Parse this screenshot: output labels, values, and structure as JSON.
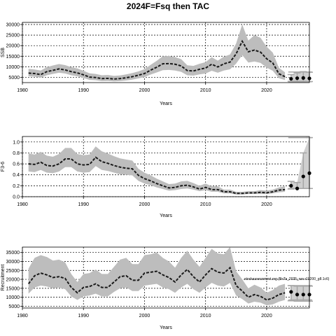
{
  "title": "2024F=Fsq then TAC",
  "chart_data": [
    {
      "type": "line",
      "panel": "ssb",
      "ylabel": "SSB",
      "xlabel": "Years",
      "xlim": [
        1980,
        2027
      ],
      "ylim": [
        2500,
        31000
      ],
      "x_ticks": [
        1980,
        1990,
        2000,
        2010,
        2020
      ],
      "y_ticks": [
        5000,
        10000,
        15000,
        20000,
        25000,
        30000
      ],
      "years": [
        1981,
        1982,
        1983,
        1984,
        1985,
        1986,
        1987,
        1988,
        1989,
        1990,
        1991,
        1992,
        1993,
        1994,
        1995,
        1996,
        1997,
        1998,
        1999,
        2000,
        2001,
        2002,
        2003,
        2004,
        2005,
        2006,
        2007,
        2008,
        2009,
        2010,
        2011,
        2012,
        2013,
        2014,
        2015,
        2016,
        2017,
        2018,
        2019,
        2020,
        2021,
        2022,
        2023
      ],
      "median": [
        7000,
        6800,
        6300,
        7700,
        8300,
        9000,
        8500,
        7700,
        7100,
        6200,
        5100,
        4900,
        4400,
        4500,
        4200,
        4400,
        4800,
        5300,
        6000,
        6800,
        8400,
        9800,
        11400,
        11500,
        11200,
        10400,
        8200,
        8000,
        8800,
        9400,
        11200,
        9900,
        11400,
        12200,
        16100,
        22100,
        17100,
        17900,
        16900,
        13800,
        11800,
        6700,
        5300
      ],
      "lower": [
        5500,
        5300,
        4800,
        6000,
        6600,
        7200,
        6800,
        6000,
        5500,
        4700,
        3800,
        3600,
        3200,
        3300,
        3100,
        3200,
        3500,
        3900,
        4500,
        5100,
        6300,
        7300,
        8400,
        8500,
        8200,
        7600,
        6000,
        5800,
        6400,
        6800,
        8100,
        7200,
        8200,
        8800,
        11500,
        15500,
        12000,
        12500,
        11800,
        9600,
        8100,
        4600,
        3700
      ],
      "upper": [
        9000,
        8700,
        8200,
        9800,
        10600,
        11300,
        10800,
        9800,
        9200,
        8100,
        6900,
        6600,
        6000,
        6100,
        5700,
        5900,
        6400,
        7000,
        7800,
        8900,
        10900,
        12800,
        15000,
        15100,
        14600,
        13600,
        10700,
        10400,
        11400,
        12200,
        14500,
        12900,
        14800,
        15800,
        21000,
        30000,
        22400,
        25000,
        23700,
        19500,
        16700,
        9500,
        7400
      ],
      "proj_years": [
        2024,
        2025,
        2026,
        2027
      ],
      "proj_median": [
        4300,
        4600,
        4700,
        4500
      ],
      "proj_lower": [
        3100,
        3100,
        3100,
        3000
      ],
      "proj_upper": [
        6300,
        7100,
        7700,
        7400
      ],
      "proj_ci_lower": 2900,
      "proj_ci_upper": 7500
    },
    {
      "type": "line",
      "panel": "f",
      "ylabel": "F3-6",
      "xlabel": "Years",
      "xlim": [
        1980,
        2027
      ],
      "ylim": [
        0,
        1.1
      ],
      "x_ticks": [
        1980,
        1990,
        2000,
        2010,
        2020
      ],
      "y_ticks": [
        "0.0",
        "0.2",
        "0.4",
        "0.6",
        "0.8",
        "1.0"
      ],
      "years": [
        1981,
        1982,
        1983,
        1984,
        1985,
        1986,
        1987,
        1988,
        1989,
        1990,
        1991,
        1992,
        1993,
        1994,
        1995,
        1996,
        1997,
        1998,
        1999,
        2000,
        2001,
        2002,
        2003,
        2004,
        2005,
        2006,
        2007,
        2008,
        2009,
        2010,
        2011,
        2012,
        2013,
        2014,
        2015,
        2016,
        2017,
        2018,
        2019,
        2020,
        2021,
        2022,
        2023
      ],
      "median": [
        0.6,
        0.59,
        0.63,
        0.57,
        0.56,
        0.6,
        0.69,
        0.69,
        0.6,
        0.58,
        0.59,
        0.72,
        0.64,
        0.61,
        0.57,
        0.54,
        0.52,
        0.51,
        0.39,
        0.33,
        0.29,
        0.24,
        0.2,
        0.16,
        0.17,
        0.2,
        0.21,
        0.18,
        0.14,
        0.17,
        0.13,
        0.13,
        0.09,
        0.09,
        0.06,
        0.06,
        0.07,
        0.07,
        0.08,
        0.07,
        0.09,
        0.12,
        0.13
      ],
      "lower": [
        0.46,
        0.45,
        0.49,
        0.44,
        0.43,
        0.46,
        0.54,
        0.54,
        0.46,
        0.44,
        0.45,
        0.56,
        0.49,
        0.47,
        0.44,
        0.41,
        0.4,
        0.39,
        0.29,
        0.24,
        0.21,
        0.17,
        0.14,
        0.11,
        0.12,
        0.14,
        0.15,
        0.13,
        0.1,
        0.12,
        0.09,
        0.09,
        0.06,
        0.06,
        0.04,
        0.04,
        0.05,
        0.05,
        0.05,
        0.05,
        0.06,
        0.08,
        0.09
      ],
      "upper": [
        0.79,
        0.77,
        0.82,
        0.75,
        0.73,
        0.78,
        0.89,
        0.89,
        0.78,
        0.76,
        0.77,
        0.92,
        0.83,
        0.79,
        0.74,
        0.7,
        0.68,
        0.66,
        0.51,
        0.44,
        0.39,
        0.33,
        0.28,
        0.23,
        0.24,
        0.28,
        0.29,
        0.25,
        0.2,
        0.24,
        0.19,
        0.19,
        0.13,
        0.13,
        0.09,
        0.09,
        0.1,
        0.1,
        0.12,
        0.11,
        0.13,
        0.17,
        0.19
      ],
      "proj_years": [
        2024,
        2025,
        2026,
        2027
      ],
      "proj_median": [
        0.2,
        0.15,
        0.37,
        0.43
      ],
      "proj_lower": [
        0.14,
        0.15,
        0.15,
        0.15
      ],
      "proj_upper": [
        0.28,
        0.26,
        0.8,
        1.08
      ],
      "proj_ci_lower": 0.15,
      "proj_ci_upper": 1.08
    },
    {
      "type": "line",
      "panel": "recruitment",
      "ylabel": "Recruitment",
      "xlabel": "Years",
      "xlim": [
        1980,
        2027
      ],
      "ylim": [
        4000,
        38000
      ],
      "x_ticks": [
        1980,
        1990,
        2000,
        2010,
        2020
      ],
      "y_ticks": [
        5000,
        10000,
        15000,
        20000,
        25000,
        30000,
        35000
      ],
      "years": [
        1981,
        1982,
        1983,
        1984,
        1985,
        1986,
        1987,
        1988,
        1989,
        1990,
        1991,
        1992,
        1993,
        1994,
        1995,
        1996,
        1997,
        1998,
        1999,
        2000,
        2001,
        2002,
        2003,
        2004,
        2005,
        2006,
        2007,
        2008,
        2009,
        2010,
        2011,
        2012,
        2013,
        2014,
        2015,
        2016,
        2017,
        2018,
        2019,
        2020,
        2021,
        2022,
        2023
      ],
      "median": [
        17500,
        22000,
        23500,
        22500,
        21000,
        21500,
        20500,
        15500,
        12500,
        15500,
        16000,
        17500,
        15500,
        15500,
        18500,
        21500,
        22000,
        19500,
        19500,
        23500,
        24000,
        24500,
        22500,
        21000,
        18500,
        22500,
        25500,
        21500,
        18500,
        22500,
        26000,
        24000,
        23500,
        26500,
        16500,
        13500,
        10000,
        11500,
        10500,
        8500,
        9500,
        11500,
        12500
      ],
      "lower": [
        12000,
        15500,
        16500,
        16000,
        15000,
        15500,
        14500,
        10500,
        8500,
        10500,
        11000,
        12000,
        10500,
        10500,
        13000,
        15000,
        15500,
        13500,
        13500,
        16500,
        17000,
        17500,
        15500,
        14500,
        12500,
        15500,
        17500,
        14500,
        12500,
        15500,
        18000,
        16500,
        16000,
        18000,
        11000,
        9000,
        6500,
        7500,
        7000,
        5500,
        6000,
        7500,
        8500
      ],
      "upper": [
        26000,
        32000,
        33500,
        32500,
        30500,
        31000,
        29500,
        23000,
        18500,
        23000,
        23500,
        25500,
        23000,
        23000,
        27000,
        31000,
        32000,
        28500,
        28500,
        33500,
        34000,
        35000,
        32000,
        30000,
        26500,
        32000,
        36000,
        31000,
        27000,
        32000,
        37000,
        34500,
        34000,
        38000,
        24500,
        20000,
        15000,
        17000,
        15500,
        12500,
        14000,
        16500,
        17500
      ],
      "proj_years": [
        2024,
        2025,
        2026,
        2027
      ],
      "proj_median": [
        13000,
        11500,
        11500,
        11500
      ],
      "proj_lower": [
        8000,
        7800,
        7800,
        7800
      ],
      "proj_upper": [
        16500,
        16200,
        16200,
        16200
      ],
      "proj_ci_lower": 8500,
      "proj_ci_upper": 16500,
      "annotation": "stockassessment.org (BsTa_2025_run.r19200_g8.1c6)"
    }
  ]
}
